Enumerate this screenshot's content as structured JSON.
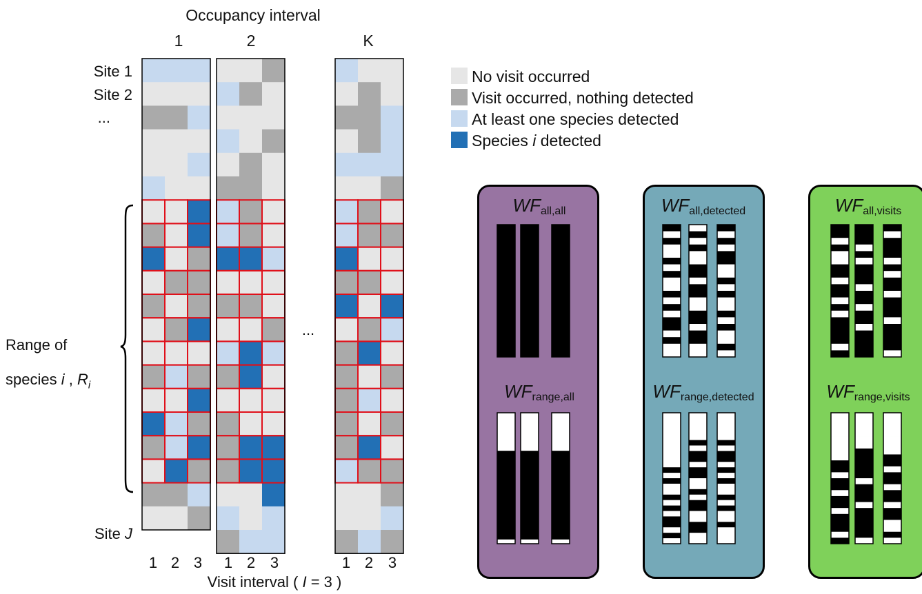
{
  "header": {
    "title": "Occupancy interval",
    "interval_labels": [
      "1",
      "2",
      "K"
    ]
  },
  "site_labels": {
    "site1": "Site 1",
    "site2": "Site 2",
    "ellipsis": "...",
    "siteJ_prefix": "Site",
    "siteJ_var": "J"
  },
  "range_label": {
    "line1": "Range of",
    "line2_prefix": "species",
    "species_var": "i",
    "comma": ",",
    "R_var": "R",
    "R_sub": "i"
  },
  "middle_ellipsis": "...",
  "visit_ticks": [
    "1",
    "2",
    "3",
    "1",
    "2",
    "3",
    "1",
    "2",
    "3"
  ],
  "xaxis": {
    "prefix": "Visit interval (",
    "var": "I",
    "suffix": "= 3 )"
  },
  "colors": {
    "no_visit": "#e6e6e6",
    "visit_nothing": "#aaaaaa",
    "any_species": "#c6d9ef",
    "species_i": "#2270b5",
    "range_border": "#e0101a",
    "panel_purple": "#9874a2",
    "panel_teal": "#75a9b8",
    "panel_green": "#7fd15a"
  },
  "legend": [
    {
      "key": "n",
      "text": "No visit occurred"
    },
    {
      "key": "v",
      "text": "Visit occurred, nothing detected"
    },
    {
      "key": "a",
      "text": "At least one species detected"
    },
    {
      "key": "s",
      "text_prefix": "Species",
      "text_var": "i",
      "text_suffix": "detected"
    }
  ],
  "grid_cells": {
    "block_1": [
      "aaa",
      "nnn",
      "vva",
      "nnn",
      "nna",
      "ann",
      "nns",
      "vns",
      "snv",
      "nvv",
      "vnv",
      "nvs",
      "nnn",
      "vav",
      "nns",
      "sav",
      "vas",
      "nsv",
      "vva",
      "nnv"
    ],
    "block_2": [
      "nnv",
      "avn",
      "nnn",
      "anv",
      "nvn",
      "vvn",
      "avn",
      "avn",
      "ssa",
      "nnn",
      "vvn",
      "nnv",
      "asa",
      "vsn",
      "nnn",
      "vnn",
      "vss",
      "vss",
      "nns",
      "ana",
      "vaa"
    ],
    "block_K": [
      "ann",
      "nvn",
      "vva",
      "nva",
      "aaa",
      "nnv",
      "avn",
      "avv",
      "snn",
      "vvn",
      "sns",
      "nva",
      "vsn",
      "vnv",
      "van",
      "vnv",
      "vsn",
      "avv",
      "nnv",
      "nna",
      "vav"
    ]
  },
  "panels": [
    {
      "title_top": {
        "var": "WF",
        "sub": "all,all"
      },
      "title_bottom": {
        "var": "WF",
        "sub": "range,all"
      },
      "top_columns": [
        "BBBBBBBBBBBBBBBBBBBB",
        "BBBBBBBBBBBBBBBBBBBB",
        "BBBBBBBBBBBBBBBBBBBB"
      ],
      "bottom_columns": [
        "WWWWWWWWWBBBBBBBBBBBBBBBBBBBBBW",
        "WWWWWWWWWBBBBBBBBBBBBBBBBBBBBBW",
        "WWWWWWWWWBBBBBBBBBBBBBBBBBBBBBW"
      ]
    },
    {
      "title_top": {
        "var": "WF",
        "sub": "all,detected"
      },
      "title_bottom": {
        "var": "WF",
        "sub": "range,detected"
      },
      "top_columns": [
        "BWBWWBWBWWBWBWBBWBWW",
        "WBWBWWBBWBBWWBBWBBWW",
        "BWBWBBWWBWBWWBWBWWBW"
      ],
      "bottom_columns": [
        "WWWWWWWWWWBWBWWBWBWBBWBW",
        "WWWWWBWBBWBBWWBWBBWWBBWW",
        "WWWWWBWBBWBWBWWBWBWWBWWW"
      ]
    },
    {
      "title_top": {
        "var": "WF",
        "sub": "all,visits"
      },
      "title_bottom": {
        "var": "WF",
        "sub": "range,visits"
      },
      "top_columns": [
        "BBWBWWBBWBBWBWBBBBWB",
        "BBBWBWBBBWBBWBBWBBBB",
        "BWBBBWBWBBWBBBWBBBBW"
      ],
      "bottom_columns": [
        "WWWWWWWWBBWBBWBBWBBBWB",
        "WWWWWWBBBBBWBBBWBBBBBW",
        "WWWWWWWBBWBBWBBWBBWWBW"
      ]
    }
  ]
}
